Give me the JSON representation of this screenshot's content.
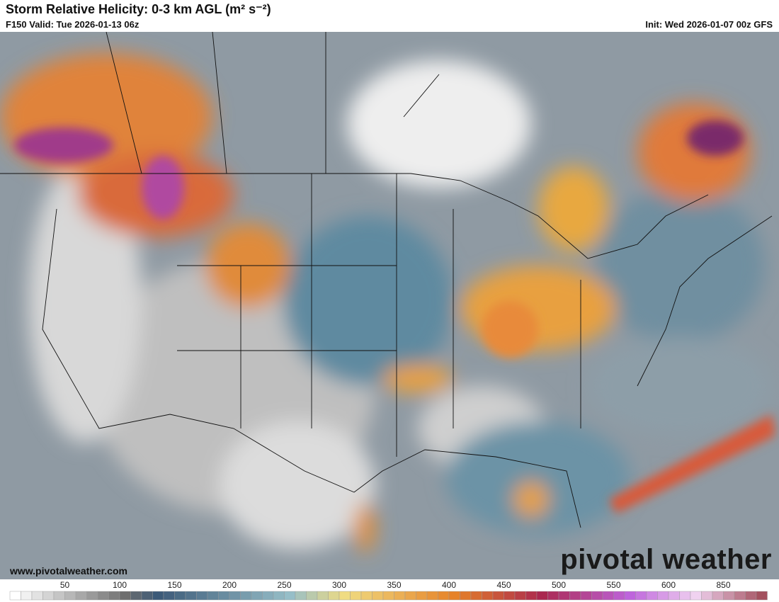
{
  "header": {
    "title": "Storm Relative Helicity: 0-3 km AGL (m² s⁻²)",
    "valid": "F150 Valid: Tue 2026-01-13 06z",
    "init": "Init: Wed 2026-01-07 00z GFS"
  },
  "colorbar": {
    "ticks": [
      50,
      100,
      150,
      200,
      250,
      300,
      350,
      400,
      450,
      500,
      550,
      600,
      850
    ]
  },
  "watermark": {
    "site": "www.pivotalweather.com",
    "brand": "pivotal weather"
  }
}
